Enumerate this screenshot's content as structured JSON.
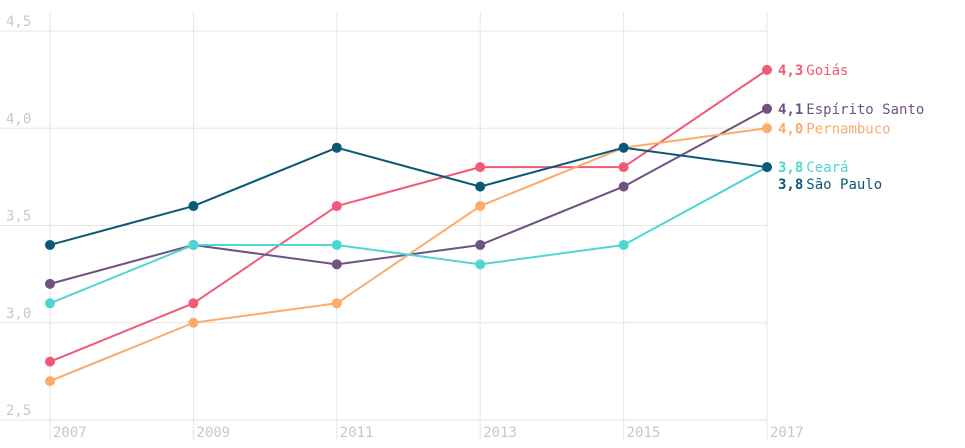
{
  "chart_data": {
    "type": "line",
    "x": [
      "2007",
      "2009",
      "2011",
      "2013",
      "2015",
      "2017"
    ],
    "y_ticks": [
      "2,5",
      "3,0",
      "3,5",
      "4,0",
      "4,5"
    ],
    "ylim": [
      2.5,
      4.5
    ],
    "grid": true,
    "legend": "end-labels",
    "series": [
      {
        "name": "Goiás",
        "color": "#f05a78",
        "values": [
          2.8,
          3.1,
          3.6,
          3.8,
          3.8,
          4.3
        ],
        "end_label": "4,3"
      },
      {
        "name": "Espírito Santo",
        "color": "#6e5282",
        "values": [
          3.2,
          3.4,
          3.3,
          3.4,
          3.7,
          4.1
        ],
        "end_label": "4,1"
      },
      {
        "name": "Pernambuco",
        "color": "#fbab6c",
        "values": [
          2.7,
          3.0,
          3.1,
          3.6,
          3.9,
          4.0
        ],
        "end_label": "4,0"
      },
      {
        "name": "Ceará",
        "color": "#4fd6d2",
        "values": [
          3.1,
          3.4,
          3.4,
          3.3,
          3.4,
          3.8
        ],
        "end_label": "3,8"
      },
      {
        "name": "São Paulo",
        "color": "#0d5878",
        "values": [
          3.4,
          3.6,
          3.9,
          3.7,
          3.9,
          3.8
        ],
        "end_label": "3,8"
      }
    ]
  }
}
